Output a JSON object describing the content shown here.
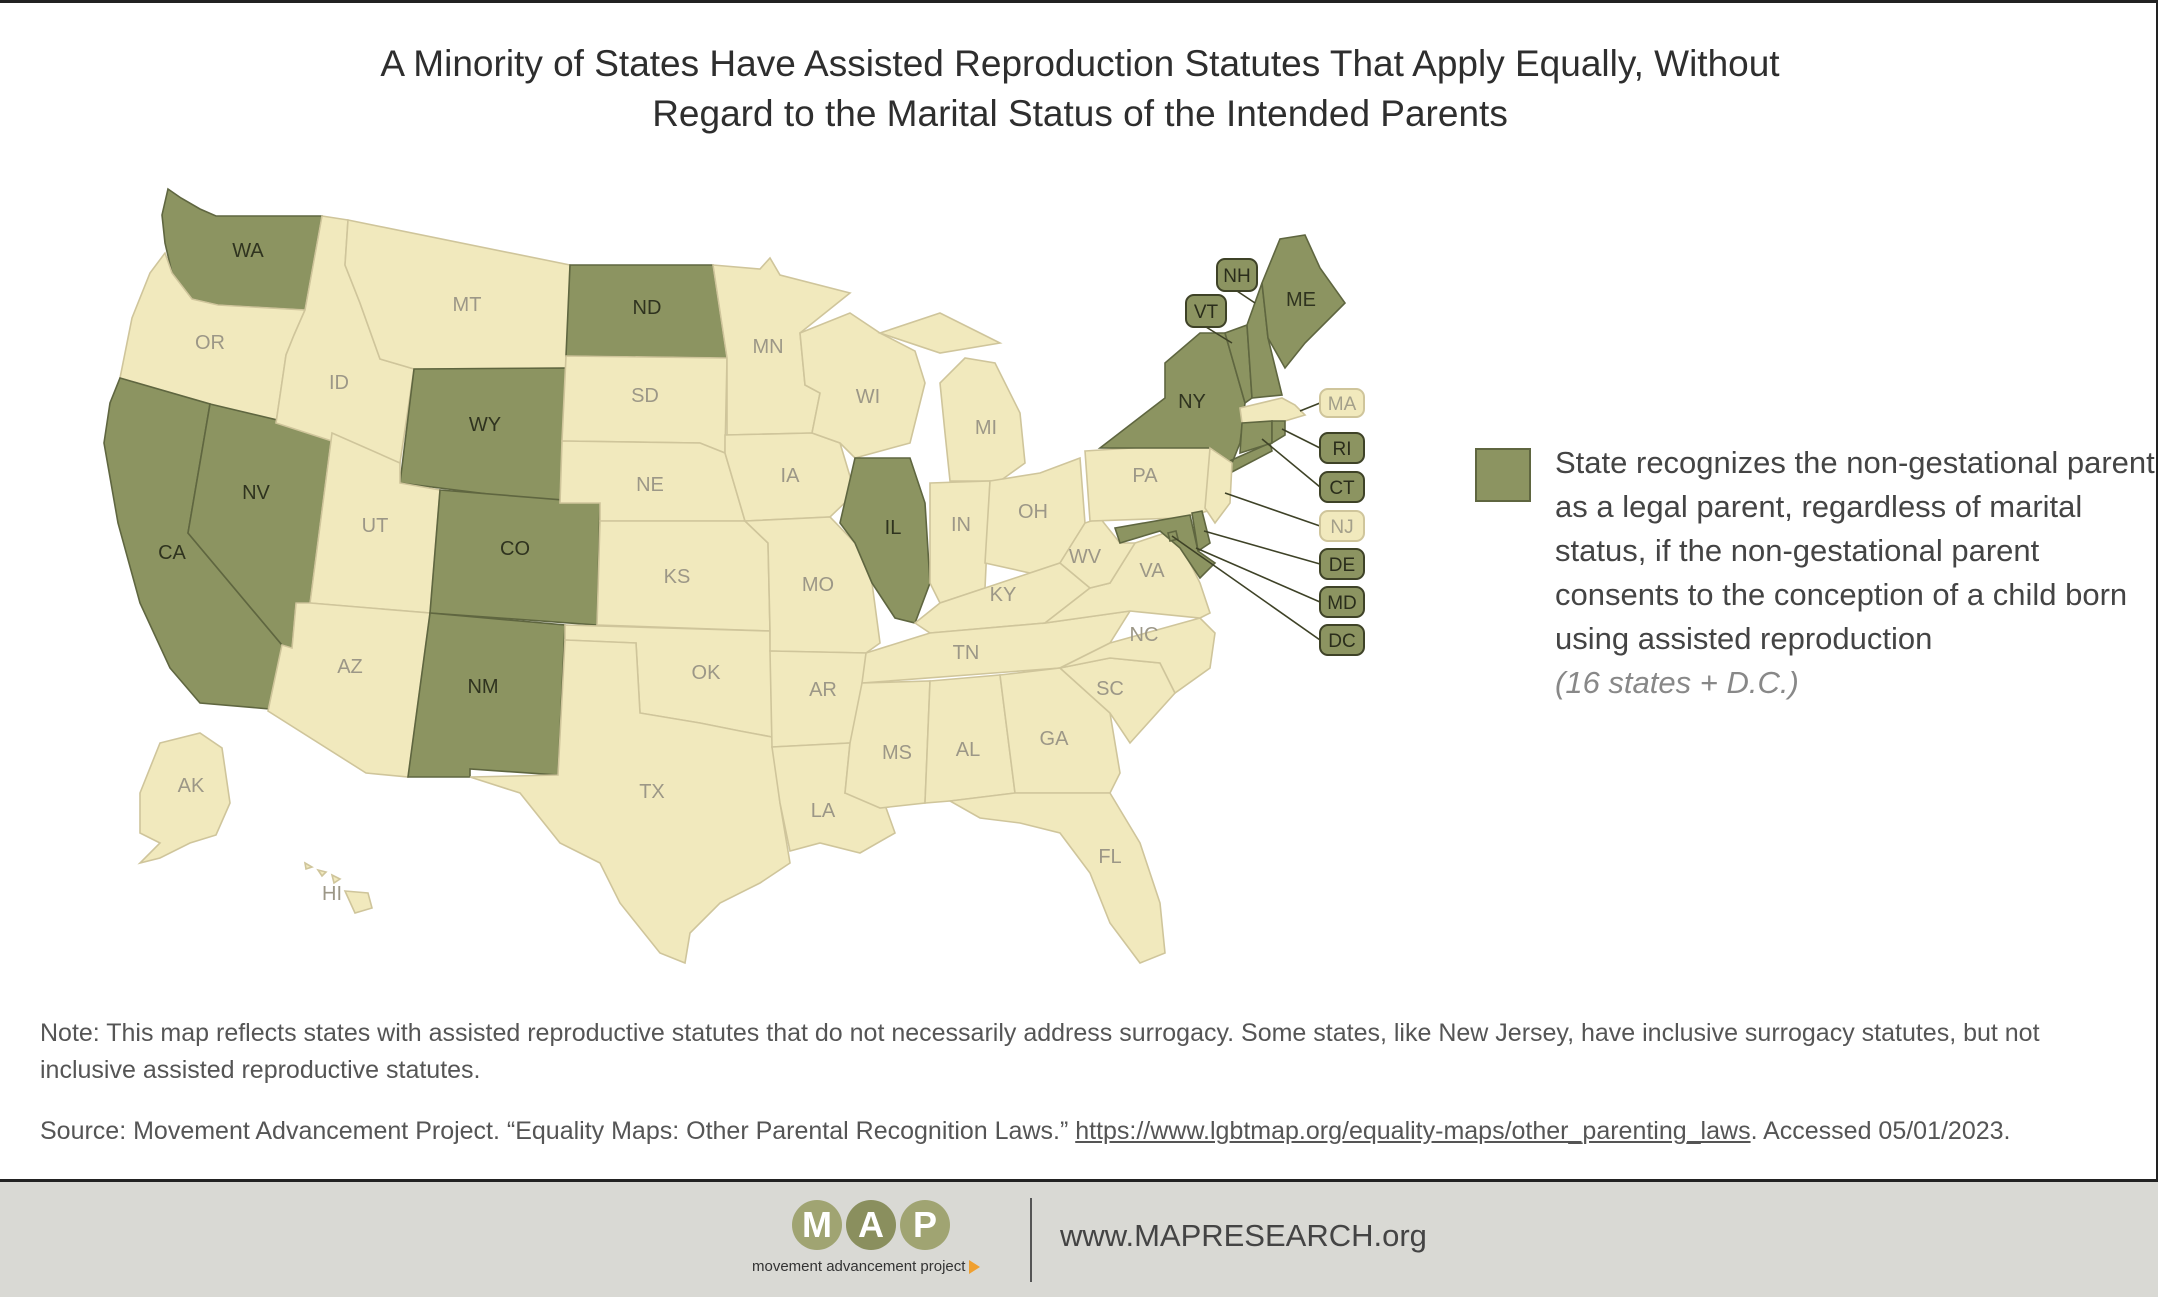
{
  "title": {
    "line1": "A Minority of States Have Assisted Reproduction Statutes That Apply Equally, Without",
    "line2": "Regard to the Marital Status of the Intended Parents"
  },
  "colors": {
    "recognized": "#8c9461",
    "not_recognized": "#f1e9bd",
    "logo_m": "#a0a472",
    "logo_a": "#8a8f5e",
    "logo_p": "#a0a472",
    "logo_arrow": "#f0a030"
  },
  "legend": {
    "text": "State recognizes the non-gestational parent as a legal parent, regardless of marital status, if the non-gestational parent consents to the conception of a child born using assisted reproduction",
    "count": "(16 states + D.C.)"
  },
  "map": {
    "recognized_states": [
      "WA",
      "CA",
      "NV",
      "WY",
      "CO",
      "NM",
      "ND",
      "IL",
      "NY",
      "VT",
      "NH",
      "ME",
      "RI",
      "CT",
      "DE",
      "MD",
      "DC"
    ],
    "state_labels": [
      "WA",
      "OR",
      "CA",
      "NV",
      "ID",
      "MT",
      "WY",
      "UT",
      "AZ",
      "CO",
      "NM",
      "ND",
      "SD",
      "NE",
      "KS",
      "OK",
      "TX",
      "MN",
      "IA",
      "MO",
      "AR",
      "LA",
      "WI",
      "IL",
      "MI",
      "IN",
      "OH",
      "KY",
      "TN",
      "MS",
      "AL",
      "GA",
      "FL",
      "SC",
      "NC",
      "VA",
      "WV",
      "PA",
      "NY",
      "VT",
      "NH",
      "ME",
      "AK",
      "HI"
    ],
    "callout_tags": [
      "NH",
      "VT",
      "MA",
      "RI",
      "CT",
      "NJ",
      "DE",
      "MD",
      "DC"
    ]
  },
  "note": "Note: This map reflects states with assisted reproductive statutes that do not necessarily address surrogacy. Some states, like New Jersey, have inclusive surrogacy statutes, but not inclusive assisted reproductive statutes.",
  "source": {
    "prefix": "Source: Movement Advancement Project. “Equality Maps: Other Parental Recognition Laws.” ",
    "link": "https://www.lgbtmap.org/equality-maps/other_parenting_laws",
    "suffix": ". Accessed 05/01/2023."
  },
  "footer": {
    "logo_letters": [
      "M",
      "A",
      "P"
    ],
    "logo_subtitle": "movement advancement project",
    "url": "www.MAPRESEARCH.org"
  }
}
